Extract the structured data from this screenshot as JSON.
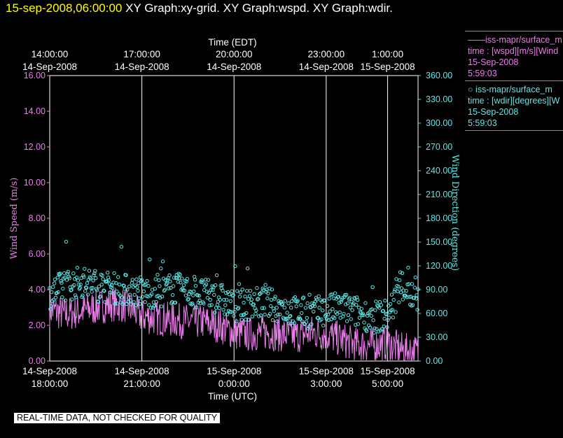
{
  "header": {
    "datetime": "15-sep-2008,06:00:00",
    "graphs": "XY Graph:xy-grid.  XY Graph:wspd.  XY Graph:wdir."
  },
  "legend": {
    "wspd": {
      "line1": "——iss-mapr/surface_m",
      "line2": "time : [wspd][m/s][Wind",
      "line3": "15-Sep-2008",
      "line4": "5:59:03"
    },
    "wdir": {
      "line1": "iss-mapr/surface_m",
      "line2": "time : [wdir][degrees][W",
      "line3": "15-Sep-2008",
      "line4": "5:59:03"
    }
  },
  "footer": {
    "quality_note": "REAL-TIME DATA, NOT CHECKED FOR QUALITY"
  },
  "colors": {
    "wspd": "#e87fe8",
    "wdir": "#5fe8e8",
    "axis_text": "#ffffff",
    "grid": "#ffffff"
  },
  "chart_data": {
    "type": "line",
    "x_range_utc_hours": [
      18.0,
      5.99
    ],
    "top_axis": {
      "label": "Time (EDT)",
      "ticks": [
        {
          "t": 18.0,
          "time": "14:00:00",
          "date": "14-Sep-2008"
        },
        {
          "t": 21.0,
          "time": "17:00:00",
          "date": "14-Sep-2008"
        },
        {
          "t": 24.0,
          "time": "20:00:00",
          "date": "14-Sep-2008"
        },
        {
          "t": 27.0,
          "time": "23:00:00",
          "date": "14-Sep-2008"
        },
        {
          "t": 29.0,
          "time": "1:00:00",
          "date": "15-Sep-2008"
        }
      ]
    },
    "bottom_axis": {
      "label": "Time (UTC)",
      "ticks": [
        {
          "t": 18.0,
          "date": "14-Sep-2008",
          "time": "18:00:00"
        },
        {
          "t": 21.0,
          "date": "14-Sep-2008",
          "time": "21:00:00"
        },
        {
          "t": 24.0,
          "date": "15-Sep-2008",
          "time": "0:00:00"
        },
        {
          "t": 27.0,
          "date": "15-Sep-2008",
          "time": "3:00:00"
        },
        {
          "t": 29.0,
          "date": "15-Sep-2008",
          "time": "5:00:00"
        }
      ]
    },
    "left_axis": {
      "label": "Wind Speed (m/s)",
      "ylim": [
        0,
        16
      ],
      "ticks": [
        "0.00",
        "2.00",
        "4.00",
        "6.00",
        "8.00",
        "10.00",
        "12.00",
        "14.00",
        "16.00"
      ]
    },
    "right_axis": {
      "label": "Wind Direction (degrees)",
      "ylim": [
        0,
        360
      ],
      "ticks": [
        "0.00",
        "30.00",
        "60.00",
        "90.00",
        "120.00",
        "150.00",
        "180.00",
        "210.00",
        "240.00",
        "270.00",
        "300.00",
        "330.00",
        "360.00"
      ]
    },
    "vertical_grid_at": [
      21.0,
      24.0,
      27.0,
      29.0
    ],
    "series": [
      {
        "key": "wspd",
        "style": "line",
        "points": [
          [
            18.0,
            2.9
          ],
          [
            18.5,
            2.6
          ],
          [
            19.0,
            2.8
          ],
          [
            19.5,
            3.0
          ],
          [
            20.0,
            3.2
          ],
          [
            20.5,
            3.1
          ],
          [
            21.0,
            2.5
          ],
          [
            21.5,
            2.4
          ],
          [
            22.0,
            2.3
          ],
          [
            22.5,
            2.2
          ],
          [
            23.0,
            2.2
          ],
          [
            23.5,
            2.0
          ],
          [
            24.0,
            1.6
          ],
          [
            24.5,
            1.5
          ],
          [
            25.0,
            1.6
          ],
          [
            25.5,
            1.5
          ],
          [
            26.0,
            1.4
          ],
          [
            26.5,
            1.6
          ],
          [
            27.0,
            1.5
          ],
          [
            27.5,
            1.2
          ],
          [
            28.0,
            0.9
          ],
          [
            28.5,
            0.9
          ],
          [
            29.0,
            1.0
          ],
          [
            29.5,
            0.6
          ],
          [
            29.99,
            0.5
          ]
        ]
      },
      {
        "key": "wdir",
        "style": "markers",
        "points": [
          [
            18.0,
            85
          ],
          [
            18.5,
            95
          ],
          [
            19.0,
            100
          ],
          [
            19.5,
            95
          ],
          [
            20.0,
            92
          ],
          [
            20.5,
            90
          ],
          [
            21.0,
            88
          ],
          [
            21.5,
            85
          ],
          [
            22.0,
            92
          ],
          [
            22.5,
            88
          ],
          [
            23.0,
            84
          ],
          [
            23.5,
            80
          ],
          [
            24.0,
            68
          ],
          [
            24.5,
            72
          ],
          [
            25.0,
            74
          ],
          [
            25.5,
            68
          ],
          [
            26.0,
            62
          ],
          [
            26.5,
            60
          ],
          [
            27.0,
            64
          ],
          [
            27.5,
            68
          ],
          [
            28.0,
            62
          ],
          [
            28.5,
            55
          ],
          [
            29.0,
            58
          ],
          [
            29.5,
            95
          ],
          [
            29.99,
            72
          ]
        ]
      }
    ]
  }
}
